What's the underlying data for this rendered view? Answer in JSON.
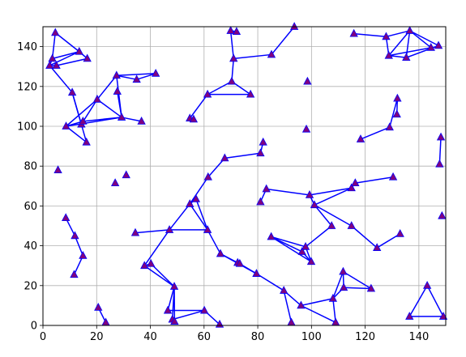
{
  "chart_data": {
    "type": "scatter",
    "title": "",
    "xlabel": "",
    "ylabel": "",
    "xlim": [
      0,
      150
    ],
    "ylim": [
      0,
      150
    ],
    "xticks": [
      0,
      20,
      40,
      60,
      80,
      100,
      120,
      140
    ],
    "yticks": [
      0,
      20,
      40,
      60,
      80,
      100,
      120,
      140
    ],
    "grid": true,
    "colors": {
      "edge": "#0000ff",
      "marker_face": "#800080",
      "grid": "#b0b0b0"
    },
    "points": [
      [
        4.6,
        147
      ],
      [
        3.5,
        134
      ],
      [
        2.5,
        130.5
      ],
      [
        5.0,
        130.5
      ],
      [
        13.5,
        137.5
      ],
      [
        16.5,
        134
      ],
      [
        10.9,
        117
      ],
      [
        20.2,
        113.5
      ],
      [
        8.6,
        100
      ],
      [
        14.3,
        101
      ],
      [
        14.9,
        102.5
      ],
      [
        16.2,
        92
      ],
      [
        27.4,
        125.5
      ],
      [
        27.7,
        117.5
      ],
      [
        34.9,
        123.5
      ],
      [
        42.0,
        126.5
      ],
      [
        29.3,
        104.5
      ],
      [
        36.7,
        102.5
      ],
      [
        5.6,
        78
      ],
      [
        26.9,
        71.5
      ],
      [
        31.0,
        75.5
      ],
      [
        69.9,
        148
      ],
      [
        72.1,
        147.5
      ],
      [
        71.0,
        134
      ],
      [
        85.1,
        136
      ],
      [
        93.6,
        150
      ],
      [
        70.3,
        122.5
      ],
      [
        61.3,
        116
      ],
      [
        77.3,
        116
      ],
      [
        54.7,
        104
      ],
      [
        56.1,
        103.5
      ],
      [
        98.5,
        122.5
      ],
      [
        98.1,
        98.5
      ],
      [
        115.8,
        146.5
      ],
      [
        127.8,
        145
      ],
      [
        136.6,
        148
      ],
      [
        128.8,
        135.5
      ],
      [
        135.3,
        134.5
      ],
      [
        144.5,
        139.5
      ],
      [
        147.3,
        140.5
      ],
      [
        132.0,
        114
      ],
      [
        131.8,
        106
      ],
      [
        129.1,
        99.5
      ],
      [
        118.3,
        93.5
      ],
      [
        148.2,
        94.5
      ],
      [
        147.7,
        81
      ],
      [
        148.6,
        55
      ],
      [
        82.0,
        92
      ],
      [
        81.0,
        86.5
      ],
      [
        67.7,
        84
      ],
      [
        61.5,
        74.5
      ],
      [
        57.0,
        63.5
      ],
      [
        54.7,
        61
      ],
      [
        83.2,
        68.5
      ],
      [
        81.0,
        62
      ],
      [
        99.3,
        65.5
      ],
      [
        101.1,
        60.5
      ],
      [
        114.9,
        69
      ],
      [
        116.3,
        71.5
      ],
      [
        130.4,
        74.5
      ],
      [
        34.4,
        46.5
      ],
      [
        47.1,
        48
      ],
      [
        61.3,
        48
      ],
      [
        8.5,
        54
      ],
      [
        11.9,
        45
      ],
      [
        14.9,
        35
      ],
      [
        11.6,
        25.5
      ],
      [
        37.8,
        30
      ],
      [
        40.2,
        31
      ],
      [
        48.9,
        19.5
      ],
      [
        46.5,
        7.5
      ],
      [
        48.2,
        3
      ],
      [
        49.0,
        2
      ],
      [
        60.1,
        7.5
      ],
      [
        65.8,
        0.5
      ],
      [
        66.1,
        36
      ],
      [
        72.5,
        31.5
      ],
      [
        73.3,
        31
      ],
      [
        79.5,
        26
      ],
      [
        89.7,
        17.5
      ],
      [
        92.5,
        1.5
      ],
      [
        96.1,
        10
      ],
      [
        85.0,
        44.5
      ],
      [
        96.5,
        37
      ],
      [
        97.8,
        39.5
      ],
      [
        99.9,
        32
      ],
      [
        107.5,
        50
      ],
      [
        114.9,
        50
      ],
      [
        124.4,
        39
      ],
      [
        133.0,
        46
      ],
      [
        111.8,
        27
      ],
      [
        112.0,
        19
      ],
      [
        108.0,
        13.5
      ],
      [
        109.0,
        1.5
      ],
      [
        122.2,
        18.5
      ],
      [
        20.6,
        9
      ],
      [
        23.4,
        1.5
      ],
      [
        143.1,
        20
      ],
      [
        136.5,
        4.5
      ],
      [
        149.1,
        4.5
      ]
    ],
    "segments": [
      [
        [
          4.6,
          147
        ],
        [
          13.5,
          137.5
        ]
      ],
      [
        [
          13.5,
          137.5
        ],
        [
          3.5,
          134
        ]
      ],
      [
        [
          3.5,
          134
        ],
        [
          2.5,
          130.5
        ]
      ],
      [
        [
          2.5,
          130.5
        ],
        [
          13.5,
          137.5
        ]
      ],
      [
        [
          13.5,
          137.5
        ],
        [
          16.5,
          134
        ]
      ],
      [
        [
          16.5,
          134
        ],
        [
          5.0,
          130.5
        ]
      ],
      [
        [
          5.0,
          130.5
        ],
        [
          2.5,
          130.5
        ]
      ],
      [
        [
          4.6,
          147
        ],
        [
          3.5,
          134
        ]
      ],
      [
        [
          2.5,
          130.5
        ],
        [
          10.9,
          117
        ]
      ],
      [
        [
          10.9,
          117
        ],
        [
          16.2,
          92
        ]
      ],
      [
        [
          16.2,
          92
        ],
        [
          8.6,
          100
        ]
      ],
      [
        [
          8.6,
          100
        ],
        [
          20.2,
          113.5
        ]
      ],
      [
        [
          20.2,
          113.5
        ],
        [
          14.3,
          101
        ]
      ],
      [
        [
          14.3,
          101
        ],
        [
          10.9,
          117
        ]
      ],
      [
        [
          20.2,
          113.5
        ],
        [
          27.4,
          125.5
        ]
      ],
      [
        [
          27.4,
          125.5
        ],
        [
          42.0,
          126.5
        ]
      ],
      [
        [
          42.0,
          126.5
        ],
        [
          34.9,
          123.5
        ]
      ],
      [
        [
          34.9,
          123.5
        ],
        [
          27.4,
          125.5
        ]
      ],
      [
        [
          27.4,
          125.5
        ],
        [
          29.3,
          104.5
        ]
      ],
      [
        [
          29.3,
          104.5
        ],
        [
          20.2,
          113.5
        ]
      ],
      [
        [
          29.3,
          104.5
        ],
        [
          14.9,
          102.5
        ]
      ],
      [
        [
          29.3,
          104.5
        ],
        [
          36.7,
          102.5
        ]
      ],
      [
        [
          29.3,
          104.5
        ],
        [
          8.6,
          100
        ]
      ],
      [
        [
          27.7,
          117.5
        ],
        [
          29.3,
          104.5
        ]
      ],
      [
        [
          14.9,
          102.5
        ],
        [
          8.6,
          100
        ]
      ],
      [
        [
          69.9,
          148
        ],
        [
          72.1,
          147.5
        ]
      ],
      [
        [
          69.9,
          148
        ],
        [
          71.0,
          134
        ]
      ],
      [
        [
          71.0,
          134
        ],
        [
          85.1,
          136
        ]
      ],
      [
        [
          85.1,
          136
        ],
        [
          93.6,
          150
        ]
      ],
      [
        [
          71.0,
          134
        ],
        [
          70.3,
          122.5
        ]
      ],
      [
        [
          70.3,
          122.5
        ],
        [
          61.3,
          116
        ]
      ],
      [
        [
          61.3,
          116
        ],
        [
          77.3,
          116
        ]
      ],
      [
        [
          77.3,
          116
        ],
        [
          70.3,
          122.5
        ]
      ],
      [
        [
          61.3,
          116
        ],
        [
          54.7,
          104
        ]
      ],
      [
        [
          54.7,
          104
        ],
        [
          56.1,
          103.5
        ]
      ],
      [
        [
          115.8,
          146.5
        ],
        [
          127.8,
          145
        ]
      ],
      [
        [
          127.8,
          145
        ],
        [
          136.6,
          148
        ]
      ],
      [
        [
          136.6,
          148
        ],
        [
          128.8,
          135.5
        ]
      ],
      [
        [
          128.8,
          135.5
        ],
        [
          127.8,
          145
        ]
      ],
      [
        [
          128.8,
          135.5
        ],
        [
          144.5,
          139.5
        ]
      ],
      [
        [
          144.5,
          139.5
        ],
        [
          136.6,
          148
        ]
      ],
      [
        [
          136.6,
          148
        ],
        [
          147.3,
          140.5
        ]
      ],
      [
        [
          147.3,
          140.5
        ],
        [
          135.3,
          134.5
        ]
      ],
      [
        [
          135.3,
          134.5
        ],
        [
          128.8,
          135.5
        ]
      ],
      [
        [
          136.6,
          148
        ],
        [
          135.3,
          134.5
        ]
      ],
      [
        [
          132.0,
          114
        ],
        [
          131.8,
          106
        ]
      ],
      [
        [
          132.0,
          114
        ],
        [
          129.1,
          99.5
        ]
      ],
      [
        [
          129.1,
          99.5
        ],
        [
          118.3,
          93.5
        ]
      ],
      [
        [
          148.2,
          94.5
        ],
        [
          147.7,
          81
        ]
      ],
      [
        [
          82.0,
          92
        ],
        [
          81.0,
          86.5
        ]
      ],
      [
        [
          81.0,
          86.5
        ],
        [
          67.7,
          84
        ]
      ],
      [
        [
          67.7,
          84
        ],
        [
          61.5,
          74.5
        ]
      ],
      [
        [
          61.5,
          74.5
        ],
        [
          54.7,
          61
        ]
      ],
      [
        [
          54.7,
          61
        ],
        [
          57.0,
          63.5
        ]
      ],
      [
        [
          57.0,
          63.5
        ],
        [
          61.3,
          48
        ]
      ],
      [
        [
          61.3,
          48
        ],
        [
          54.7,
          61
        ]
      ],
      [
        [
          54.7,
          61
        ],
        [
          47.1,
          48
        ]
      ],
      [
        [
          47.1,
          48
        ],
        [
          61.3,
          48
        ]
      ],
      [
        [
          61.3,
          48
        ],
        [
          66.1,
          36
        ]
      ],
      [
        [
          81.0,
          62
        ],
        [
          83.2,
          68.5
        ]
      ],
      [
        [
          83.2,
          68.5
        ],
        [
          99.3,
          65.5
        ]
      ],
      [
        [
          99.3,
          65.5
        ],
        [
          114.9,
          69
        ]
      ],
      [
        [
          114.9,
          69
        ],
        [
          101.1,
          60.5
        ]
      ],
      [
        [
          101.1,
          60.5
        ],
        [
          99.3,
          65.5
        ]
      ],
      [
        [
          114.9,
          69
        ],
        [
          116.3,
          71.5
        ]
      ],
      [
        [
          116.3,
          71.5
        ],
        [
          130.4,
          74.5
        ]
      ],
      [
        [
          101.1,
          60.5
        ],
        [
          107.5,
          50
        ]
      ],
      [
        [
          101.1,
          60.5
        ],
        [
          114.9,
          50
        ]
      ],
      [
        [
          114.9,
          50
        ],
        [
          124.4,
          39
        ]
      ],
      [
        [
          124.4,
          39
        ],
        [
          133.0,
          46
        ]
      ],
      [
        [
          107.5,
          50
        ],
        [
          97.8,
          39.5
        ]
      ],
      [
        [
          97.8,
          39.5
        ],
        [
          85.0,
          44.5
        ]
      ],
      [
        [
          85.0,
          44.5
        ],
        [
          96.5,
          37
        ]
      ],
      [
        [
          96.5,
          37
        ],
        [
          99.9,
          32
        ]
      ],
      [
        [
          99.9,
          32
        ],
        [
          97.8,
          39.5
        ]
      ],
      [
        [
          85.0,
          44.5
        ],
        [
          99.9,
          32
        ]
      ],
      [
        [
          97.8,
          39.5
        ],
        [
          96.5,
          37
        ]
      ],
      [
        [
          34.4,
          46.5
        ],
        [
          47.1,
          48
        ]
      ],
      [
        [
          47.1,
          48
        ],
        [
          37.8,
          30
        ]
      ],
      [
        [
          37.8,
          30
        ],
        [
          40.2,
          31
        ]
      ],
      [
        [
          40.2,
          31
        ],
        [
          48.9,
          19.5
        ]
      ],
      [
        [
          48.9,
          19.5
        ],
        [
          37.8,
          30
        ]
      ],
      [
        [
          48.9,
          19.5
        ],
        [
          46.5,
          7.5
        ]
      ],
      [
        [
          48.9,
          19.5
        ],
        [
          48.2,
          3
        ]
      ],
      [
        [
          48.9,
          19.5
        ],
        [
          49.0,
          2
        ]
      ],
      [
        [
          46.5,
          7.5
        ],
        [
          60.1,
          7.5
        ]
      ],
      [
        [
          60.1,
          7.5
        ],
        [
          48.2,
          3
        ]
      ],
      [
        [
          60.1,
          7.5
        ],
        [
          65.8,
          0.5
        ]
      ],
      [
        [
          8.5,
          54
        ],
        [
          11.9,
          45
        ]
      ],
      [
        [
          11.9,
          45
        ],
        [
          14.9,
          35
        ]
      ],
      [
        [
          11.6,
          25.5
        ],
        [
          14.9,
          35
        ]
      ],
      [
        [
          66.1,
          36
        ],
        [
          72.5,
          31.5
        ]
      ],
      [
        [
          72.5,
          31.5
        ],
        [
          73.3,
          31
        ]
      ],
      [
        [
          73.3,
          31
        ],
        [
          79.5,
          26
        ]
      ],
      [
        [
          66.1,
          36
        ],
        [
          79.5,
          26
        ]
      ],
      [
        [
          79.5,
          26
        ],
        [
          89.7,
          17.5
        ]
      ],
      [
        [
          89.7,
          17.5
        ],
        [
          92.5,
          1.5
        ]
      ],
      [
        [
          89.7,
          17.5
        ],
        [
          96.1,
          10
        ]
      ],
      [
        [
          96.1,
          10
        ],
        [
          108.0,
          13.5
        ]
      ],
      [
        [
          108.0,
          13.5
        ],
        [
          109.0,
          1.5
        ]
      ],
      [
        [
          96.1,
          10
        ],
        [
          109.0,
          1.5
        ]
      ],
      [
        [
          108.0,
          13.5
        ],
        [
          111.8,
          27
        ]
      ],
      [
        [
          111.8,
          27
        ],
        [
          112.0,
          19
        ]
      ],
      [
        [
          112.0,
          19
        ],
        [
          122.2,
          18.5
        ]
      ],
      [
        [
          122.2,
          18.5
        ],
        [
          111.8,
          27
        ]
      ],
      [
        [
          112.0,
          19
        ],
        [
          108.0,
          13.5
        ]
      ],
      [
        [
          20.6,
          9
        ],
        [
          23.4,
          1.5
        ]
      ],
      [
        [
          136.5,
          4.5
        ],
        [
          143.1,
          20
        ]
      ],
      [
        [
          143.1,
          20
        ],
        [
          149.1,
          4.5
        ]
      ],
      [
        [
          149.1,
          4.5
        ],
        [
          136.5,
          4.5
        ]
      ]
    ]
  }
}
